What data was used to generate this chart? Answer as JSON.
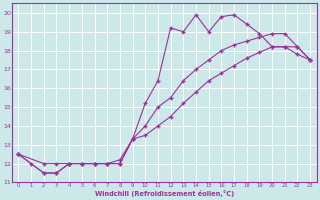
{
  "background_color": "#cce8e8",
  "grid_color": "#aadddd",
  "line_color": "#993399",
  "xlabel": "Windchill (Refroidissement éolien,°C)",
  "xlim": [
    -0.5,
    23.5
  ],
  "ylim": [
    11.0,
    20.5
  ],
  "yticks": [
    11,
    12,
    13,
    14,
    15,
    16,
    17,
    18,
    19,
    20
  ],
  "xticks": [
    0,
    1,
    2,
    3,
    4,
    5,
    6,
    7,
    8,
    9,
    10,
    11,
    12,
    13,
    14,
    15,
    16,
    17,
    18,
    19,
    20,
    21,
    22,
    23
  ],
  "line1_x": [
    0,
    1,
    2,
    3,
    4,
    5,
    6,
    7,
    8,
    9,
    10,
    11,
    12,
    13,
    14,
    15,
    16,
    17,
    18,
    19,
    20,
    21,
    22,
    23
  ],
  "line1_y": [
    12.5,
    12.0,
    11.5,
    11.5,
    12.0,
    12.0,
    12.0,
    12.0,
    12.0,
    13.3,
    15.2,
    16.4,
    19.2,
    19.0,
    19.9,
    19.0,
    19.8,
    19.9,
    19.4,
    18.9,
    18.2,
    18.2,
    18.2,
    17.5
  ],
  "line2_x": [
    0,
    2,
    3,
    4,
    5,
    6,
    7,
    8,
    9,
    10,
    11,
    12,
    13,
    14,
    15,
    16,
    17,
    18,
    19,
    20,
    21,
    22,
    23
  ],
  "line2_y": [
    12.5,
    12.0,
    12.0,
    12.0,
    12.0,
    12.0,
    12.0,
    12.2,
    13.3,
    14.0,
    15.0,
    15.5,
    16.4,
    17.0,
    17.5,
    18.0,
    18.3,
    18.5,
    18.7,
    18.9,
    18.9,
    18.2,
    17.5
  ],
  "line3_x": [
    0,
    2,
    3,
    4,
    5,
    6,
    7,
    8,
    9,
    10,
    11,
    12,
    13,
    14,
    15,
    16,
    17,
    18,
    19,
    20,
    21,
    22,
    23
  ],
  "line3_y": [
    12.5,
    11.5,
    11.5,
    12.0,
    12.0,
    12.0,
    12.0,
    12.0,
    13.3,
    13.5,
    14.0,
    14.5,
    15.2,
    15.8,
    16.4,
    16.8,
    17.2,
    17.6,
    17.9,
    18.2,
    18.2,
    17.8,
    17.5
  ]
}
